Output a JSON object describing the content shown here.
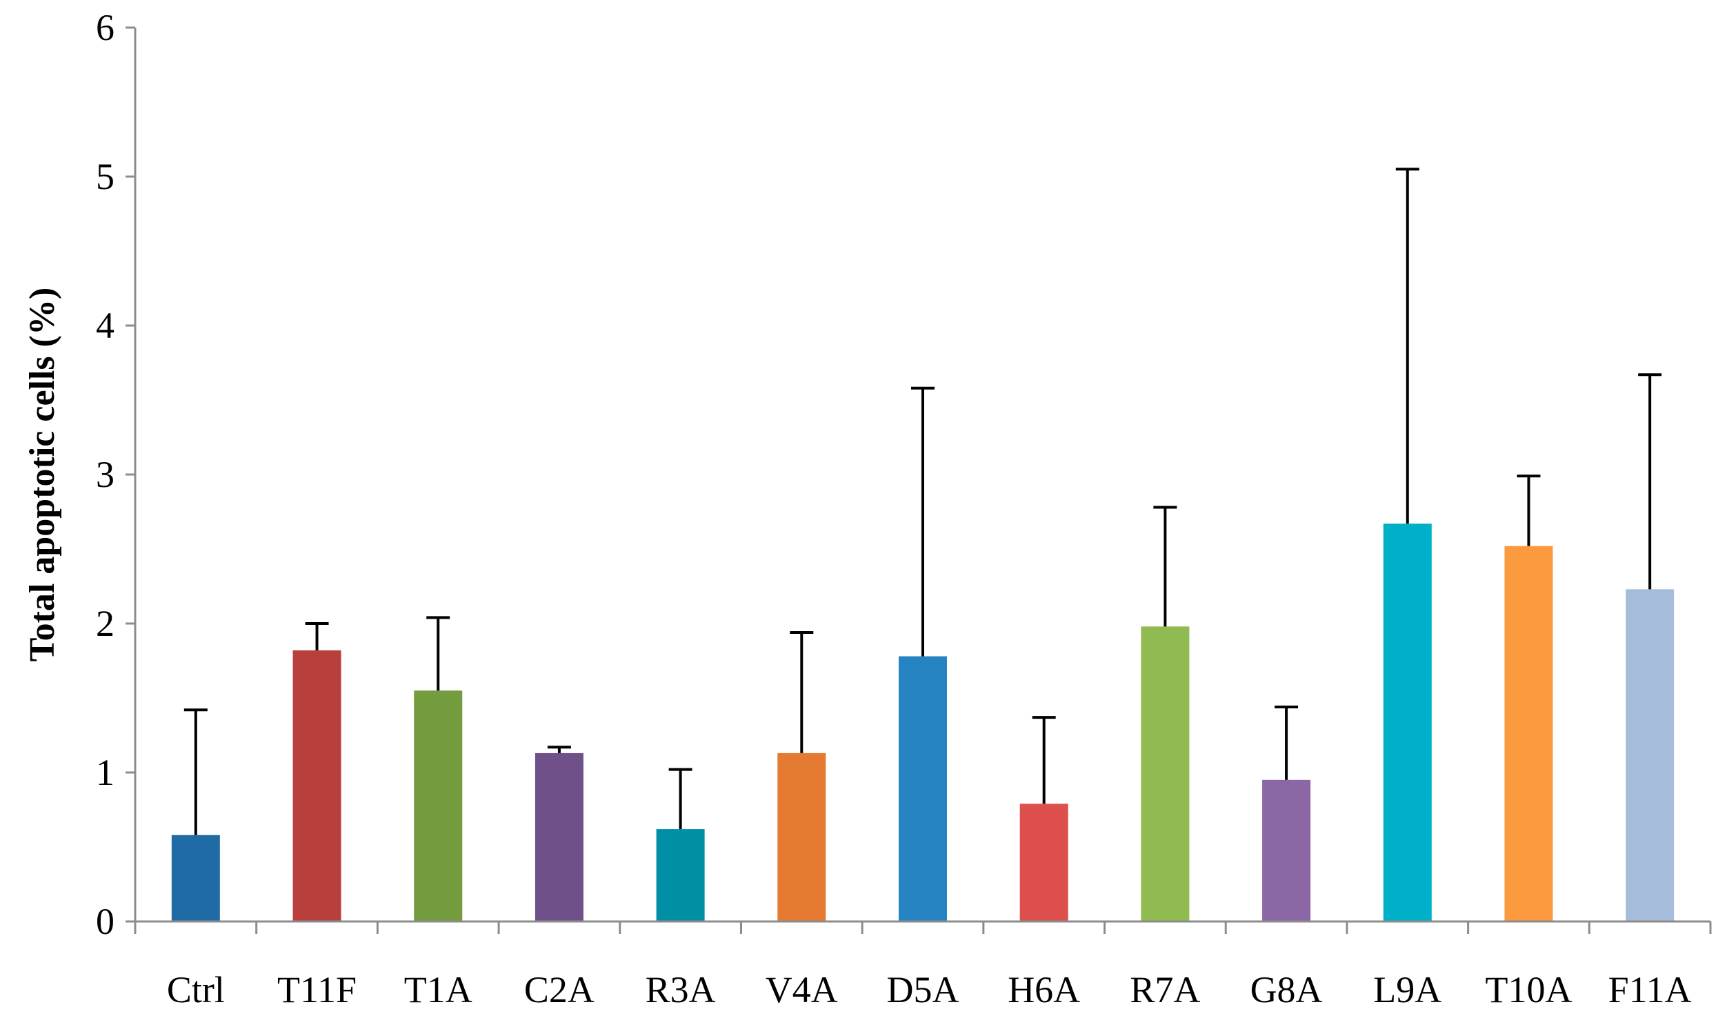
{
  "chart_data": {
    "type": "bar",
    "title": "",
    "xlabel": "",
    "ylabel": "Total apoptotic cells (%)",
    "ylim": [
      0,
      6
    ],
    "yticks": [
      "0",
      "1",
      "2",
      "3",
      "4",
      "5",
      "6"
    ],
    "categories": [
      "Ctrl",
      "T11F",
      "T1A",
      "C2A",
      "R3A",
      "V4A",
      "D5A",
      "H6A",
      "R7A",
      "G8A",
      "L9A",
      "T10A",
      "F11A"
    ],
    "values": [
      0.58,
      1.82,
      1.55,
      1.13,
      0.62,
      1.13,
      1.78,
      0.79,
      1.98,
      0.95,
      2.67,
      2.52,
      2.23
    ],
    "error_upper": [
      1.42,
      2.0,
      2.04,
      1.17,
      1.02,
      1.94,
      3.58,
      1.37,
      2.78,
      1.44,
      5.05,
      2.99,
      3.67
    ],
    "colors": [
      "#1f6ba5",
      "#b83f3c",
      "#739c3e",
      "#6f5088",
      "#008fa5",
      "#e57b30",
      "#2583c1",
      "#dd4f4c",
      "#8fbb51",
      "#8c67a6",
      "#00afc8",
      "#fb9a3e",
      "#a6bcdb"
    ],
    "grid": false,
    "legend": "none"
  }
}
